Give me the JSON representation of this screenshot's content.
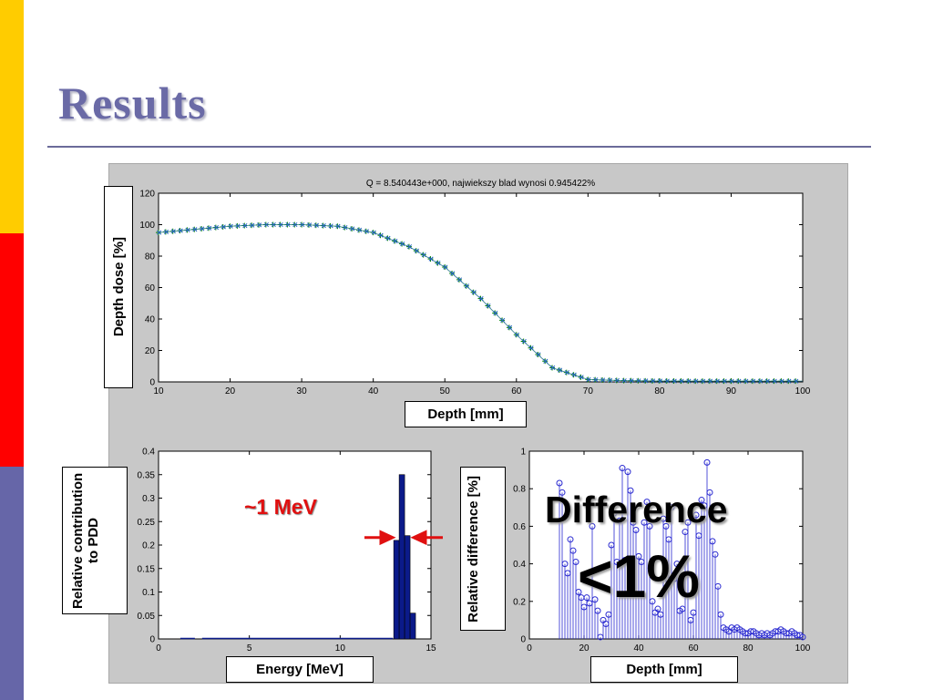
{
  "slide": {
    "title": "Results",
    "accent_colors": [
      "#FFCC00",
      "#FF0000",
      "#6666A8"
    ]
  },
  "labels": {
    "pdd_ylabel": "Depth dose [%]",
    "pdd_xlabel": "Depth [mm]",
    "spec_ylabel": "Relative contribution to PDD",
    "spec_xlabel": "Energy [MeV]",
    "diff_ylabel": "Relative difference [%]",
    "diff_xlabel": "Depth [mm]",
    "mev_annotation": "~1 MeV",
    "diff_annotation": "Difference",
    "diff_value": "<1%"
  },
  "chart_data": [
    {
      "id": "pdd",
      "type": "line",
      "title": "Q = 8.540443e+000, najwiekszy blad wynosi 0.945422%",
      "xlabel": "Depth [mm]",
      "ylabel": "Depth dose [%]",
      "xlim": [
        10,
        100
      ],
      "ylim": [
        0,
        120
      ],
      "xticks": [
        10,
        20,
        30,
        40,
        50,
        60,
        70,
        80,
        90,
        100
      ],
      "yticks": [
        0,
        20,
        40,
        60,
        80,
        100,
        120
      ],
      "grid": false,
      "series": [
        {
          "marker": "+",
          "color": "#008000",
          "x": [
            10,
            15,
            20,
            25,
            30,
            35,
            40,
            45,
            50,
            55,
            60,
            65,
            70,
            75,
            80,
            85,
            90,
            95,
            100
          ],
          "values": [
            95,
            97,
            99,
            100,
            100,
            99,
            95,
            86,
            73,
            53,
            30,
            9,
            1.5,
            0.8,
            0.6,
            0.5,
            0.5,
            0.5,
            0.5
          ]
        },
        {
          "marker": "x",
          "color": "#2060c0",
          "x": [
            10,
            15,
            20,
            25,
            30,
            35,
            40,
            45,
            50,
            55,
            60,
            65,
            70,
            75,
            80,
            85,
            90,
            95,
            100
          ],
          "values": [
            95,
            97,
            99,
            100,
            100,
            99,
            95,
            86,
            73,
            53,
            30,
            9,
            1.5,
            0.8,
            0.6,
            0.5,
            0.5,
            0.5,
            0.5
          ]
        }
      ]
    },
    {
      "id": "spectrum",
      "type": "bar",
      "xlabel": "Energy [MeV]",
      "ylabel": "Relative contribution to PDD",
      "xlim": [
        0,
        15
      ],
      "ylim": [
        0,
        0.4
      ],
      "xticks": [
        0,
        5,
        10,
        15
      ],
      "yticks": [
        0,
        0.05,
        0.1,
        0.15,
        0.2,
        0.25,
        0.3,
        0.35,
        0.4
      ],
      "color": "#0b1a8a",
      "x": [
        13.1,
        13.4,
        13.7,
        14.0
      ],
      "values": [
        0.21,
        0.35,
        0.22,
        0.055
      ],
      "bar_width": 0.3,
      "baseline_line_values": [
        [
          1.2,
          2.0,
          0.001
        ],
        [
          2.4,
          12.9,
          0.001
        ]
      ]
    },
    {
      "id": "difference",
      "type": "stem",
      "xlabel": "Depth [mm]",
      "ylabel": "Relative difference [%]",
      "xlim": [
        0,
        100
      ],
      "ylim": [
        0,
        1
      ],
      "xticks": [
        0,
        20,
        40,
        60,
        80,
        100
      ],
      "yticks": [
        0,
        0.2,
        0.4,
        0.6,
        0.8,
        1
      ],
      "color": "#2828d0",
      "x": [
        11,
        12,
        13,
        14,
        15,
        16,
        17,
        18,
        19,
        20,
        21,
        22,
        23,
        24,
        25,
        26,
        27,
        28,
        29,
        30,
        31,
        32,
        33,
        34,
        35,
        36,
        37,
        38,
        39,
        40,
        41,
        42,
        43,
        44,
        45,
        46,
        47,
        48,
        49,
        50,
        51,
        52,
        53,
        54,
        55,
        56,
        57,
        58,
        59,
        60,
        61,
        62,
        63,
        64,
        65,
        66,
        67,
        68,
        69,
        70,
        71,
        72,
        73,
        74,
        75,
        76,
        77,
        78,
        79,
        80,
        81,
        82,
        83,
        84,
        85,
        86,
        87,
        88,
        89,
        90,
        91,
        92,
        93,
        94,
        95,
        96,
        97,
        98,
        99,
        100
      ],
      "values": [
        0.83,
        0.78,
        0.4,
        0.35,
        0.53,
        0.47,
        0.41,
        0.25,
        0.22,
        0.17,
        0.22,
        0.19,
        0.6,
        0.21,
        0.15,
        0.01,
        0.1,
        0.08,
        0.13,
        0.5,
        0.67,
        0.41,
        0.63,
        0.91,
        0.42,
        0.89,
        0.79,
        0.62,
        0.58,
        0.44,
        0.41,
        0.62,
        0.73,
        0.6,
        0.2,
        0.14,
        0.16,
        0.13,
        0.64,
        0.6,
        0.53,
        0.7,
        0.32,
        0.4,
        0.15,
        0.16,
        0.57,
        0.62,
        0.1,
        0.14,
        0.66,
        0.55,
        0.74,
        0.71,
        0.94,
        0.78,
        0.52,
        0.45,
        0.28,
        0.13,
        0.06,
        0.05,
        0.04,
        0.06,
        0.05,
        0.06,
        0.05,
        0.04,
        0.03,
        0.03,
        0.04,
        0.04,
        0.03,
        0.02,
        0.03,
        0.02,
        0.03,
        0.02,
        0.03,
        0.04,
        0.04,
        0.05,
        0.04,
        0.03,
        0.03,
        0.04,
        0.03,
        0.02,
        0.02,
        0.01
      ]
    }
  ]
}
